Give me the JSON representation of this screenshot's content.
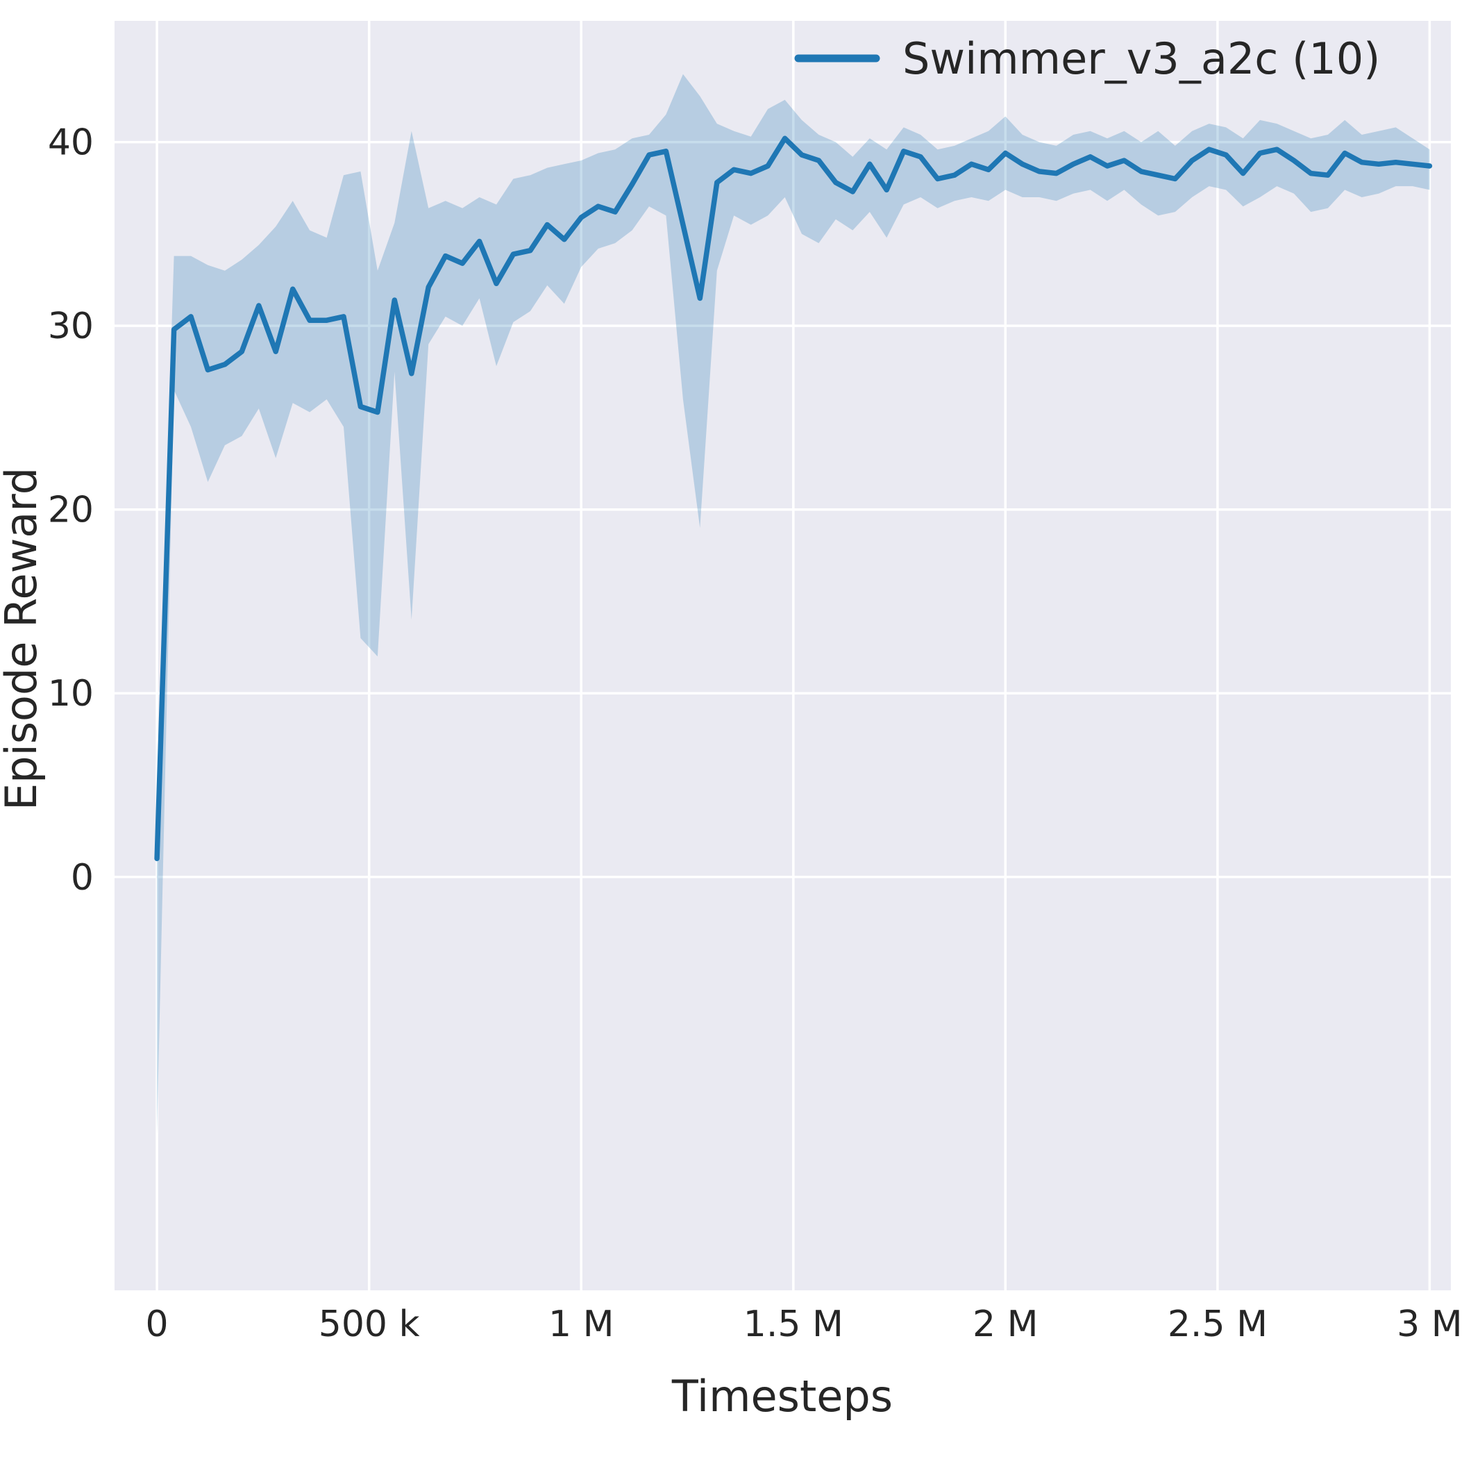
{
  "figure": {
    "background": "#ffffff",
    "plot_background": "#eaeaf2",
    "grid_color": "#ffffff",
    "text_color": "#262626"
  },
  "chart_data": {
    "type": "line",
    "title": "",
    "xlabel": "Timesteps",
    "ylabel": "Episode Reward",
    "grid": true,
    "legend": {
      "label": "Swimmer_v3_a2c (10)",
      "position": "upper right"
    },
    "xlim": [
      -100000,
      3050000
    ],
    "ylim": [
      -22.5,
      46.6
    ],
    "xticks": {
      "values": [
        0,
        500000,
        1000000,
        1500000,
        2000000,
        2500000,
        3000000
      ],
      "labels": [
        "0",
        "500 k",
        "1 M",
        "1.5 M",
        "2 M",
        "2.5 M",
        "3 M"
      ]
    },
    "yticks": {
      "values": [
        0,
        10,
        20,
        30,
        40
      ],
      "labels": [
        "0",
        "10",
        "20",
        "30",
        "40"
      ]
    },
    "series": [
      {
        "name": "Swimmer_v3_a2c (10)",
        "color": "#1f77b4",
        "band_opacity": 0.25,
        "x": [
          0,
          40000,
          80000,
          120000,
          160000,
          200000,
          240000,
          280000,
          320000,
          360000,
          400000,
          440000,
          480000,
          520000,
          560000,
          600000,
          640000,
          680000,
          720000,
          760000,
          800000,
          840000,
          880000,
          920000,
          960000,
          1000000,
          1040000,
          1080000,
          1120000,
          1160000,
          1200000,
          1240000,
          1280000,
          1320000,
          1360000,
          1400000,
          1440000,
          1480000,
          1520000,
          1560000,
          1600000,
          1640000,
          1680000,
          1720000,
          1760000,
          1800000,
          1840000,
          1880000,
          1920000,
          1960000,
          2000000,
          2040000,
          2080000,
          2120000,
          2160000,
          2200000,
          2240000,
          2280000,
          2320000,
          2360000,
          2400000,
          2440000,
          2480000,
          2520000,
          2560000,
          2600000,
          2640000,
          2680000,
          2720000,
          2760000,
          2800000,
          2840000,
          2880000,
          2920000,
          2960000,
          3000000
        ],
        "mean": [
          1.0,
          29.8,
          30.5,
          27.6,
          27.9,
          28.6,
          31.1,
          28.6,
          32.0,
          30.3,
          30.3,
          30.5,
          25.6,
          25.3,
          31.4,
          27.4,
          32.1,
          33.8,
          33.4,
          34.6,
          32.3,
          33.9,
          34.1,
          35.5,
          34.7,
          35.9,
          36.5,
          36.2,
          37.7,
          39.3,
          39.5,
          35.5,
          31.5,
          37.8,
          38.5,
          38.3,
          38.7,
          40.2,
          39.3,
          39.0,
          37.8,
          37.3,
          38.8,
          37.4,
          39.5,
          39.2,
          38.0,
          38.2,
          38.8,
          38.5,
          39.4,
          38.8,
          38.4,
          38.3,
          38.8,
          39.2,
          38.7,
          39.0,
          38.4,
          38.2,
          38.0,
          39.0,
          39.6,
          39.3,
          38.3,
          39.4,
          39.6,
          39.0,
          38.3,
          38.2,
          39.4,
          38.9,
          38.8,
          38.9,
          38.8,
          38.7
        ],
        "band_low": [
          -14.0,
          26.5,
          24.5,
          21.5,
          23.5,
          24.0,
          25.5,
          22.8,
          25.8,
          25.3,
          26.0,
          24.5,
          13.0,
          12.0,
          27.5,
          14.0,
          29.0,
          30.5,
          30.0,
          31.5,
          27.8,
          30.2,
          30.8,
          32.2,
          31.2,
          33.2,
          34.2,
          34.5,
          35.2,
          36.5,
          36.0,
          26.0,
          19.0,
          33.0,
          36.0,
          35.5,
          36.0,
          37.0,
          35.0,
          34.5,
          35.8,
          35.2,
          36.2,
          34.8,
          36.6,
          37.0,
          36.4,
          36.8,
          37.0,
          36.8,
          37.4,
          37.0,
          37.0,
          36.8,
          37.2,
          37.4,
          36.8,
          37.4,
          36.6,
          36.0,
          36.2,
          37.0,
          37.6,
          37.4,
          36.5,
          37.0,
          37.6,
          37.2,
          36.2,
          36.4,
          37.4,
          37.0,
          37.2,
          37.6,
          37.6,
          37.4
        ],
        "band_high": [
          5.0,
          33.8,
          33.8,
          33.3,
          33.0,
          33.6,
          34.4,
          35.4,
          36.8,
          35.2,
          34.8,
          38.2,
          38.4,
          33.0,
          35.6,
          40.6,
          36.4,
          36.8,
          36.4,
          37.0,
          36.6,
          38.0,
          38.2,
          38.6,
          38.8,
          39.0,
          39.4,
          39.6,
          40.2,
          40.4,
          41.5,
          43.7,
          42.5,
          41.0,
          40.6,
          40.3,
          41.8,
          42.3,
          41.2,
          40.4,
          40.0,
          39.2,
          40.2,
          39.6,
          40.8,
          40.4,
          39.6,
          39.8,
          40.2,
          40.6,
          41.4,
          40.4,
          40.0,
          39.8,
          40.4,
          40.6,
          40.2,
          40.6,
          40.0,
          40.6,
          39.8,
          40.6,
          41.0,
          40.8,
          40.2,
          41.2,
          41.0,
          40.6,
          40.2,
          40.4,
          41.2,
          40.4,
          40.6,
          40.8,
          40.2,
          39.6
        ]
      }
    ]
  }
}
